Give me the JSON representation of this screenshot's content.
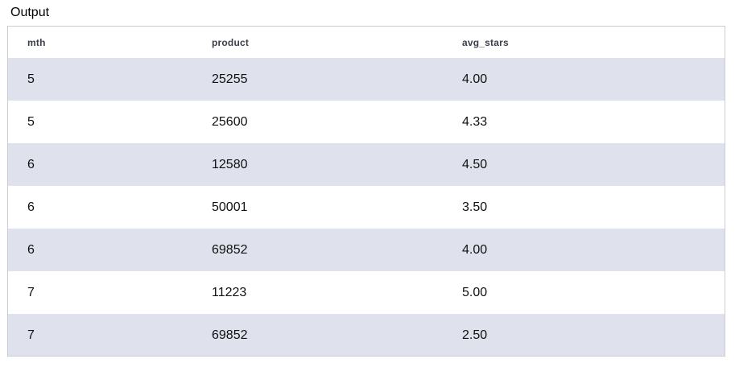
{
  "title": "Output",
  "table": {
    "columns": [
      "mth",
      "product",
      "avg_stars"
    ],
    "rows": [
      [
        "5",
        "25255",
        "4.00"
      ],
      [
        "5",
        "25600",
        "4.33"
      ],
      [
        "6",
        "12580",
        "4.50"
      ],
      [
        "6",
        "50001",
        "3.50"
      ],
      [
        "6",
        "69852",
        "4.00"
      ],
      [
        "7",
        "11223",
        "5.00"
      ],
      [
        "7",
        "69852",
        "2.50"
      ]
    ]
  },
  "colors": {
    "shaded_row": "#dfe2ec",
    "plain_row": "#ffffff",
    "border": "#c9ccd3"
  }
}
